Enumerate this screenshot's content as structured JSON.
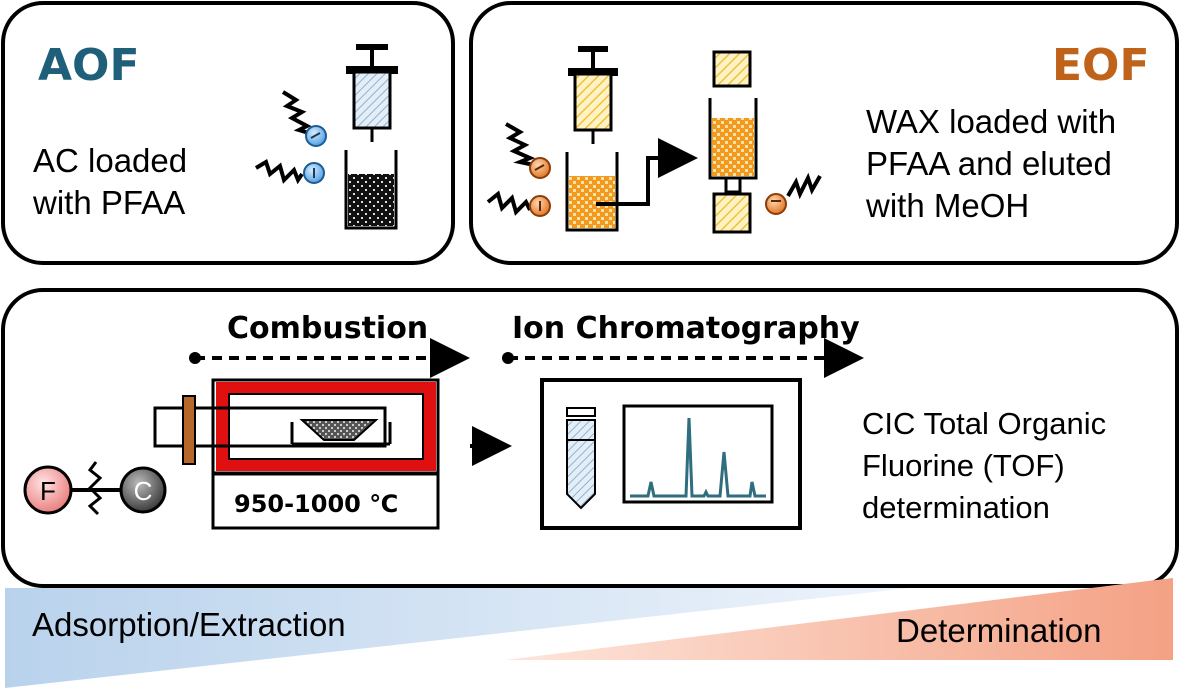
{
  "aof": {
    "title": "AOF",
    "desc_line1": "AC loaded",
    "desc_line2": "with PFAA"
  },
  "eof": {
    "title": "EOF",
    "desc_line1": "WAX loaded with",
    "desc_line2": "PFAA and eluted",
    "desc_line3": "with MeOH"
  },
  "cic": {
    "combustion_label": "Combustion",
    "ic_label": "Ion Chromatography",
    "temperature": "950-1000 ℃",
    "desc_line1": "CIC Total Organic",
    "desc_line2": "Fluorine (TOF)",
    "desc_line3": "determination",
    "atom_f": "F",
    "atom_c": "C"
  },
  "gradient": {
    "left_label": "Adsorption/Extraction",
    "right_label": "Determination"
  },
  "colors": {
    "aof_title": "#1f5f7a",
    "eof_title": "#c0631a",
    "furnace": "#e01010",
    "peak_line": "#2e6e7e",
    "orange_fill": "#f5a623",
    "blue_gradient": "#8fb6dd",
    "salmon_gradient": "#f29a7a"
  },
  "icons": [
    "syringe-icon",
    "cartridge-icon",
    "pfaa-molecule-icon",
    "vial-icon",
    "chromatogram-icon",
    "furnace-icon",
    "arrow-icon"
  ]
}
